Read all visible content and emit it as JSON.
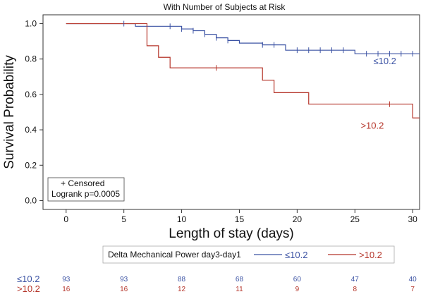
{
  "chart_data": {
    "type": "line",
    "title": "With Number of Subjects at Risk",
    "xlabel": "Length of stay (days)",
    "ylabel": "Survival Probability",
    "xlim": [
      -2,
      30.6
    ],
    "ylim": [
      -0.05,
      1.05
    ],
    "x_ticks": [
      0,
      5,
      10,
      15,
      20,
      25,
      30
    ],
    "y_ticks": [
      "0.0",
      "0.2",
      "0.4",
      "0.6",
      "0.8",
      "1.0"
    ],
    "grid": false,
    "series": [
      {
        "name": "≤10.2",
        "color": "#3c53a4",
        "steps": [
          [
            0,
            1.0
          ],
          [
            6,
            0.985
          ],
          [
            10,
            0.97
          ],
          [
            11,
            0.96
          ],
          [
            12,
            0.94
          ],
          [
            13,
            0.92
          ],
          [
            14,
            0.905
          ],
          [
            15,
            0.89
          ],
          [
            17,
            0.88
          ],
          [
            19,
            0.85
          ],
          [
            25,
            0.83
          ],
          [
            30.6,
            0.83
          ]
        ],
        "censor_x": [
          5,
          9,
          10,
          11,
          12,
          13,
          14,
          17,
          18,
          20,
          21,
          22,
          23,
          24,
          26,
          27,
          28,
          29,
          30
        ],
        "end_label": "≤10.2"
      },
      {
        "name": ">10.2",
        "color": "#b5352a",
        "steps": [
          [
            0,
            1.0
          ],
          [
            7,
            0.875
          ],
          [
            8,
            0.81
          ],
          [
            9,
            0.75
          ],
          [
            17,
            0.68
          ],
          [
            18,
            0.61
          ],
          [
            21,
            0.545
          ],
          [
            30,
            0.467
          ],
          [
            30.6,
            0.467
          ]
        ],
        "censor_x": [
          13,
          28
        ],
        "end_label": ">10.2"
      }
    ],
    "inset_box": {
      "censor_label": "+ Censored",
      "logrank": "Logrank p=0.0005"
    },
    "legend": {
      "title": "Delta Mechanical Power day3-day1",
      "placement": "bottom",
      "items": [
        {
          "label": "≤10.2",
          "color": "#3c53a4"
        },
        {
          "label": ">10.2",
          "color": "#b5352a"
        }
      ]
    },
    "risk_table": {
      "times": [
        0,
        5,
        10,
        15,
        20,
        25,
        30
      ],
      "rows": [
        {
          "label": "≤10.2",
          "color": "#3c53a4",
          "values": [
            93,
            93,
            88,
            68,
            60,
            47,
            40
          ]
        },
        {
          "label": ">10.2",
          "color": "#b5352a",
          "values": [
            16,
            16,
            12,
            11,
            9,
            8,
            7
          ]
        }
      ]
    }
  }
}
